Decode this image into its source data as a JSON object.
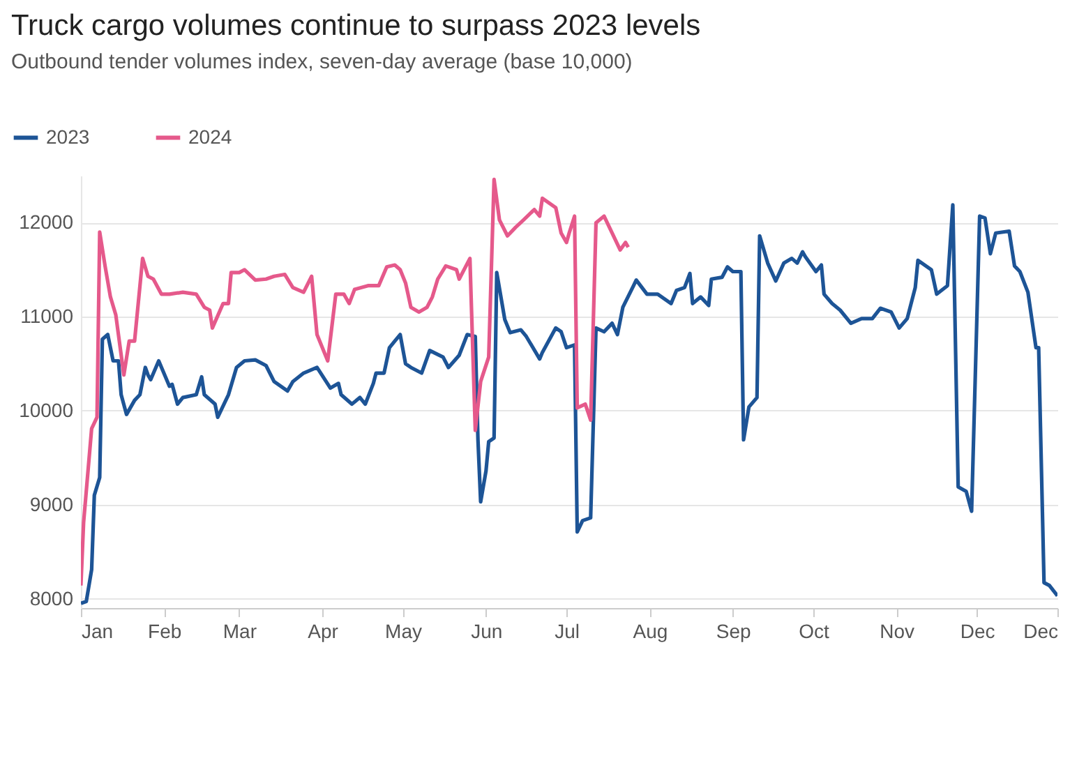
{
  "chart_data": {
    "type": "line",
    "title": "Truck cargo volumes continue to surpass 2023 levels",
    "subtitle": "Outbound tender volumes index, seven-day average (base 10,000)",
    "xlim": [
      "--01-01",
      "--12-31"
    ],
    "xticks": [
      {
        "value": "--01-01",
        "label": "Jan"
      },
      {
        "value": "--02-01",
        "label": "Feb"
      },
      {
        "value": "--03-01",
        "label": "Mar"
      },
      {
        "value": "--04-01",
        "label": "Apr"
      },
      {
        "value": "--05-01",
        "label": "May"
      },
      {
        "value": "--06-01",
        "label": "Jun"
      },
      {
        "value": "--07-01",
        "label": "Jul"
      },
      {
        "value": "--08-01",
        "label": "Aug"
      },
      {
        "value": "--09-01",
        "label": "Sep"
      },
      {
        "value": "--10-01",
        "label": "Oct"
      },
      {
        "value": "--11-01",
        "label": "Nov"
      },
      {
        "value": "--12-01",
        "label": "Dec"
      },
      {
        "value": "--12-31",
        "label": "Dec"
      }
    ],
    "ylim": [
      7900,
      12500
    ],
    "yticks": [
      8000,
      9000,
      10000,
      11000,
      12000
    ],
    "grid": "y",
    "legend": "top left",
    "series": [
      {
        "name": "2023",
        "color": "#1d5496",
        "x": [
          "--01-01",
          "--01-03",
          "--01-05",
          "--01-06",
          "--01-08",
          "--01-09",
          "--01-11",
          "--01-13",
          "--01-15",
          "--01-16",
          "--01-18",
          "--01-21",
          "--01-23",
          "--01-25",
          "--01-26",
          "--01-27",
          "--01-30",
          "--02-03",
          "--02-04",
          "--02-06",
          "--02-08",
          "--02-13",
          "--02-15",
          "--02-16",
          "--02-20",
          "--02-21",
          "--02-24",
          "--02-25",
          "--02-28",
          "--03-03",
          "--03-07",
          "--03-11",
          "--03-14",
          "--03-19",
          "--03-21",
          "--03-25",
          "--03-30",
          "--04-04",
          "--04-07",
          "--04-08",
          "--04-12",
          "--04-15",
          "--04-17",
          "--04-20",
          "--04-21",
          "--04-24",
          "--04-26",
          "--04-28",
          "--04-30",
          "--05-02",
          "--05-04",
          "--05-08",
          "--05-11",
          "--05-16",
          "--05-18",
          "--05-22",
          "--05-25",
          "--05-28",
          "--05-29",
          "--05-30",
          "--06-01",
          "--06-02",
          "--06-04",
          "--06-05",
          "--06-08",
          "--06-10",
          "--06-14",
          "--06-16",
          "--06-21",
          "--06-22",
          "--06-27",
          "--06-29",
          "--07-01",
          "--07-04",
          "--07-05",
          "--07-07",
          "--07-10",
          "--07-12",
          "--07-15",
          "--07-18",
          "--07-20",
          "--07-22",
          "--07-26",
          "--07-27",
          "--07-31",
          "--08-04",
          "--08-09",
          "--08-11",
          "--08-14",
          "--08-16",
          "--08-17",
          "--08-20",
          "--08-23",
          "--08-24",
          "--08-28",
          "--08-30",
          "--09-01",
          "--09-04",
          "--09-05",
          "--09-07",
          "--09-10",
          "--09-11",
          "--09-14",
          "--09-17",
          "--09-20",
          "--09-23",
          "--09-25",
          "--09-27",
          "--09-28",
          "--10-02",
          "--10-04",
          "--10-05",
          "--10-08",
          "--10-11",
          "--10-15",
          "--10-19",
          "--10-23",
          "--10-26",
          "--10-30",
          "--11-02",
          "--11-05",
          "--11-08",
          "--11-09",
          "--11-14",
          "--11-16",
          "--11-20",
          "--11-22",
          "--11-24",
          "--11-27",
          "--11-29",
          "--12-02",
          "--12-04",
          "--12-06",
          "--12-08",
          "--12-13",
          "--12-15",
          "--12-17",
          "--12-20",
          "--12-23",
          "--12-24",
          "--12-26",
          "--12-28",
          "--12-31"
        ],
        "values": [
          7950,
          7970,
          8310,
          9100,
          9290,
          10760,
          10810,
          10530,
          10530,
          10170,
          9960,
          10110,
          10170,
          10460,
          10380,
          10330,
          10530,
          10260,
          10280,
          10070,
          10140,
          10170,
          10360,
          10170,
          10070,
          9930,
          10110,
          10170,
          10460,
          10530,
          10540,
          10480,
          10310,
          10210,
          10310,
          10400,
          10460,
          10240,
          10290,
          10170,
          10070,
          10140,
          10070,
          10290,
          10400,
          10400,
          10670,
          10740,
          10810,
          10500,
          10460,
          10400,
          10640,
          10570,
          10460,
          10590,
          10810,
          10790,
          9690,
          9030,
          9360,
          9670,
          9710,
          11470,
          10970,
          10830,
          10860,
          10790,
          10550,
          10620,
          10880,
          10840,
          10670,
          10700,
          8710,
          8830,
          8860,
          10880,
          10840,
          10930,
          10810,
          11100,
          11330,
          11390,
          11240,
          11240,
          11140,
          11280,
          11310,
          11460,
          11140,
          11210,
          11120,
          11400,
          11420,
          11530,
          11480,
          11480,
          9690,
          10040,
          10140,
          11860,
          11570,
          11380,
          11570,
          11620,
          11570,
          11690,
          11640,
          11480,
          11550,
          11240,
          11140,
          11070,
          10930,
          10980,
          10980,
          11090,
          11050,
          10880,
          10980,
          11310,
          11600,
          11500,
          11240,
          11330,
          12190,
          9190,
          9140,
          8930,
          12070,
          12050,
          11670,
          11890,
          11910,
          11540,
          11480,
          11260,
          10670,
          10670,
          8170,
          8140,
          8030
        ]
      },
      {
        "name": "2024",
        "color": "#e5598b",
        "x": [
          "--01-01",
          "--01-02",
          "--01-05",
          "--01-07",
          "--01-08",
          "--01-10",
          "--01-12",
          "--01-14",
          "--01-17",
          "--01-19",
          "--01-21",
          "--01-24",
          "--01-26",
          "--01-28",
          "--01-31",
          "--02-03",
          "--02-08",
          "--02-13",
          "--02-16",
          "--02-18",
          "--02-19",
          "--02-23",
          "--02-25",
          "--02-26",
          "--03-01",
          "--03-03",
          "--03-07",
          "--03-11",
          "--03-14",
          "--03-18",
          "--03-21",
          "--03-25",
          "--03-28",
          "--03-30",
          "--04-03",
          "--04-06",
          "--04-09",
          "--04-11",
          "--04-13",
          "--04-18",
          "--04-22",
          "--04-25",
          "--04-28",
          "--04-30",
          "--05-02",
          "--05-04",
          "--05-07",
          "--05-10",
          "--05-12",
          "--05-14",
          "--05-17",
          "--05-21",
          "--05-22",
          "--05-26",
          "--05-28",
          "--05-30",
          "--06-02",
          "--06-04",
          "--06-06",
          "--06-09",
          "--06-12",
          "--06-15",
          "--06-19",
          "--06-21",
          "--06-22",
          "--06-27",
          "--06-29",
          "--07-01",
          "--07-02",
          "--07-04",
          "--07-05",
          "--07-08",
          "--07-10",
          "--07-12",
          "--07-15",
          "--07-18",
          "--07-21",
          "--07-23",
          "--07-24"
        ],
        "values": [
          8140,
          8810,
          9810,
          9930,
          11900,
          11540,
          11210,
          11020,
          10380,
          10740,
          10740,
          11620,
          11430,
          11400,
          11240,
          11240,
          11260,
          11240,
          11100,
          11070,
          10880,
          11140,
          11140,
          11470,
          11470,
          11500,
          11390,
          11400,
          11430,
          11450,
          11310,
          11260,
          11430,
          10810,
          10530,
          11240,
          11240,
          11140,
          11290,
          11330,
          11330,
          11530,
          11550,
          11500,
          11360,
          11100,
          11050,
          11100,
          11210,
          11400,
          11540,
          11500,
          11400,
          11620,
          9790,
          10310,
          10570,
          12460,
          12030,
          11860,
          11950,
          12030,
          12140,
          12070,
          12260,
          12160,
          11890,
          11790,
          11890,
          12070,
          10030,
          10070,
          9900,
          12000,
          12070,
          11890,
          11710,
          11790,
          11740
        ]
      }
    ]
  }
}
